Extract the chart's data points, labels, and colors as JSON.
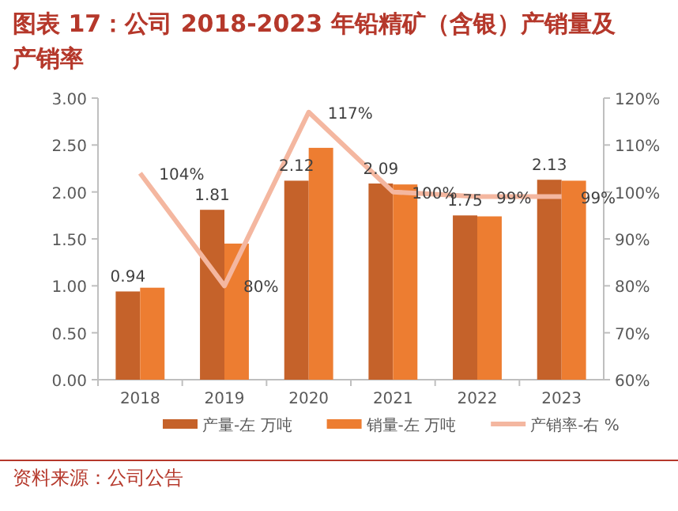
{
  "chart_data": {
    "type": "bar",
    "title": "图表 17：公司 2018-2023 年铅精矿（含银）产销量及产销率",
    "annotations": [
      "资料来源：公司公告"
    ],
    "categories": [
      "2018",
      "2019",
      "2020",
      "2021",
      "2022",
      "2023"
    ],
    "series": [
      {
        "name": "产量-左 万吨",
        "color": "#c5622a",
        "values": [
          0.94,
          1.81,
          2.12,
          2.09,
          1.75,
          2.13
        ],
        "value_labels": [
          "0.94",
          "1.81",
          "2.12",
          "2.09",
          "1.75",
          "2.13"
        ]
      },
      {
        "name": "销量-左 万吨",
        "color": "#ed7d31",
        "values": [
          0.98,
          1.45,
          2.47,
          2.08,
          1.74,
          2.12
        ]
      },
      {
        "name": "产销率-右 %",
        "type": "line",
        "axis": "y2",
        "color": "#f4b7a0",
        "values": [
          104,
          80,
          117,
          100,
          99,
          99
        ],
        "value_labels": [
          "104%",
          "80%",
          "117%",
          "100%",
          "99%",
          "99%"
        ]
      }
    ],
    "ylim": [
      0,
      3
    ],
    "yticks": [
      {
        "value": 0,
        "label": "0.00"
      },
      {
        "value": 0.5,
        "label": "0.50"
      },
      {
        "value": 1,
        "label": "1.00"
      },
      {
        "value": 1.5,
        "label": "1.50"
      },
      {
        "value": 2,
        "label": "2.00"
      },
      {
        "value": 2.5,
        "label": "2.50"
      },
      {
        "value": 3,
        "label": "3.00"
      }
    ],
    "y2lim": [
      60,
      120
    ],
    "y2ticks": [
      {
        "value": 60,
        "label": "60%"
      },
      {
        "value": 70,
        "label": "70%"
      },
      {
        "value": 80,
        "label": "80%"
      },
      {
        "value": 90,
        "label": "90%"
      },
      {
        "value": 100,
        "label": "100%"
      },
      {
        "value": 110,
        "label": "110%"
      },
      {
        "value": 120,
        "label": "120%"
      }
    ],
    "legend": "bottom",
    "grid": false
  }
}
